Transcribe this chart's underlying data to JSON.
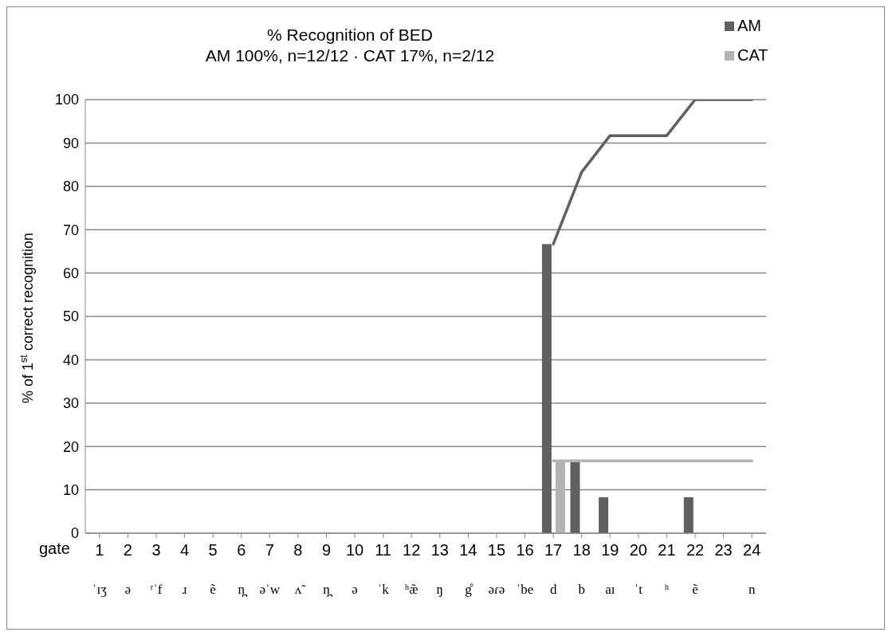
{
  "chart_data": {
    "type": "bar",
    "title": "% Recognition of BED",
    "subtitle": "AM 100%, n=12/12 · CAT 17%, n=2/12",
    "xlabel": "gate",
    "ylabel": "% of 1$^{st}$ correct recognition",
    "categories": [
      "1\nˈɪʒ",
      "2\nə",
      "3\nʳˈf",
      "4\nɹ",
      "5\nẽ",
      "6\nn̪",
      "7\nəˈw",
      "8\nʌ̃",
      "9\nn̪",
      "10\nə",
      "11\nˈk",
      "12\nʰæ̃",
      "13\nŋ",
      "14\ng̊",
      "15\nəɾə",
      "16\nˈbe",
      "17\nd",
      "18\nb",
      "19\naɪ",
      "20\nˈt",
      "21\nʰ",
      "22\nẽ",
      "23",
      "24\nn"
    ],
    "series": [
      {
        "name": "AM",
        "color": "#606060",
        "values": [
          null,
          null,
          null,
          null,
          null,
          null,
          null,
          null,
          null,
          null,
          null,
          null,
          null,
          null,
          null,
          null,
          66.7,
          16.7,
          8.3,
          null,
          null,
          8.3,
          null,
          null
        ]
      },
      {
        "name": "CAT",
        "color": "#b3b3b3",
        "values": [
          null,
          null,
          null,
          null,
          null,
          null,
          null,
          null,
          null,
          null,
          null,
          null,
          null,
          null,
          null,
          null,
          16.7,
          null,
          null,
          null,
          null,
          null,
          null,
          null
        ]
      },
      {
        "type": "line",
        "color": "#606060",
        "values": [
          null,
          null,
          null,
          null,
          null,
          null,
          null,
          null,
          null,
          null,
          null,
          null,
          null,
          null,
          null,
          null,
          66.7,
          83.3,
          91.7,
          91.7,
          91.7,
          100,
          100,
          100
        ]
      },
      {
        "type": "line",
        "color": "#b3b3b3",
        "values": [
          null,
          null,
          null,
          null,
          null,
          null,
          null,
          null,
          null,
          null,
          null,
          null,
          null,
          null,
          null,
          null,
          16.7,
          16.7,
          16.7,
          16.7,
          16.7,
          16.7,
          16.7,
          16.7
        ]
      }
    ],
    "ylim": [
      0,
      100
    ],
    "yticks": [
      0,
      10,
      20,
      30,
      40,
      50,
      60,
      70,
      80,
      90,
      100
    ],
    "grid": "y",
    "legend": "top right",
    "line_style": "solid",
    "marker": "none"
  }
}
